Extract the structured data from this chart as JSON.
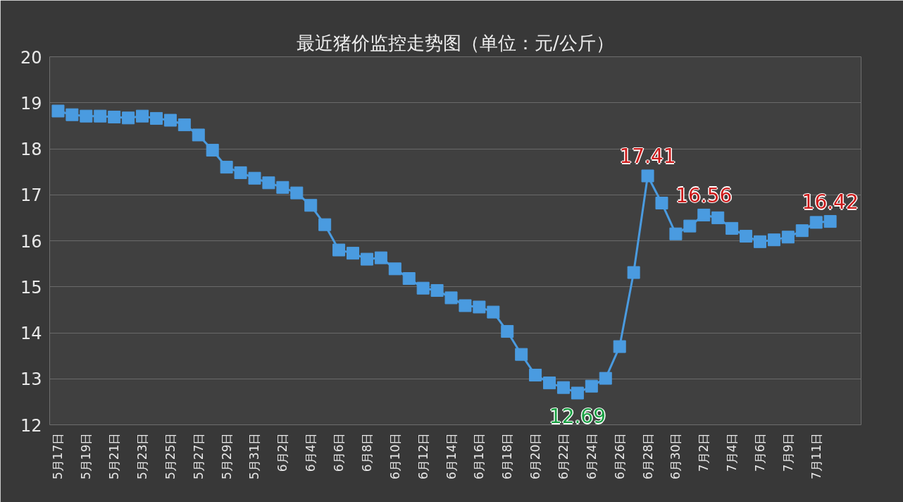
{
  "chart_data": {
    "type": "line",
    "title": "最近猪价监控走势图（单位：元/公斤）",
    "categories": [
      "5月17日",
      null,
      "5月19日",
      null,
      "5月21日",
      null,
      "5月23日",
      null,
      "5月25日",
      null,
      "5月27日",
      null,
      "5月29日",
      null,
      "5月31日",
      null,
      "6月2日",
      null,
      "6月4日",
      null,
      "6月6日",
      null,
      "6月8日",
      null,
      "6月10日",
      null,
      "6月12日",
      null,
      "6月14日",
      null,
      "6月16日",
      null,
      "6月18日",
      null,
      "6月20日",
      null,
      "6月22日",
      null,
      "6月24日",
      null,
      "6月26日",
      null,
      "6月28日",
      null,
      "6月30日",
      null,
      "7月2日",
      null,
      "7月4日",
      null,
      "7月6日",
      null,
      "7月9日",
      null,
      "7月11日",
      null
    ],
    "series": [
      {
        "color": "#4a9be0",
        "values": [
          18.82,
          18.74,
          18.71,
          18.71,
          18.69,
          18.67,
          18.71,
          18.66,
          18.62,
          18.52,
          18.3,
          17.97,
          17.6,
          17.48,
          17.36,
          17.26,
          17.16,
          17.04,
          16.77,
          16.35,
          15.8,
          15.73,
          15.6,
          15.63,
          15.39,
          15.18,
          14.97,
          14.92,
          14.76,
          14.59,
          14.56,
          14.45,
          14.03,
          13.53,
          13.08,
          12.91,
          12.81,
          12.69,
          12.84,
          13.01,
          13.7,
          15.31,
          17.41,
          16.82,
          16.15,
          16.32,
          16.56,
          16.5,
          16.27,
          16.1,
          15.98,
          16.02,
          16.08,
          16.22,
          16.4,
          16.42
        ],
        "value_labels": [
          null,
          null,
          null,
          null,
          null,
          null,
          null,
          null,
          null,
          null,
          null,
          null,
          null,
          null,
          null,
          null,
          null,
          null,
          null,
          null,
          null,
          null,
          null,
          null,
          null,
          null,
          null,
          null,
          null,
          null,
          null,
          null,
          null,
          null,
          null,
          null,
          null,
          "12.69",
          null,
          null,
          null,
          null,
          "17.41",
          null,
          null,
          null,
          "16.56",
          null,
          null,
          null,
          null,
          null,
          null,
          null,
          null,
          "16.42"
        ]
      }
    ],
    "ylim": [
      12,
      20
    ],
    "yticks": [
      12,
      13,
      14,
      15,
      16,
      17,
      18,
      19,
      20
    ],
    "grid": "y",
    "marker": "square",
    "line_style": "solid"
  }
}
